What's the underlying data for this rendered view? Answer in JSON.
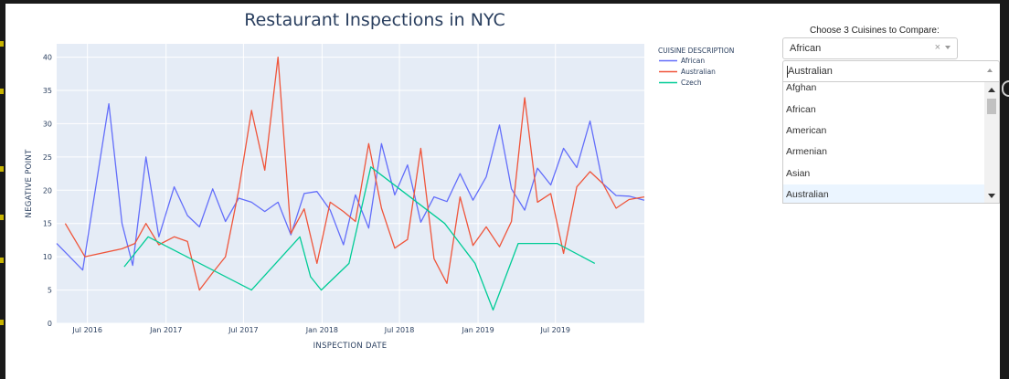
{
  "chart_data": {
    "type": "line",
    "title": "Restaurant Inspections in NYC",
    "xlabel": "INSPECTION DATE",
    "ylabel": "NEGATIVE POINT",
    "ylim": [
      0,
      42
    ],
    "xlim": [
      "2016-04-20",
      "2020-01-25"
    ],
    "y_ticks": [
      0,
      5,
      10,
      15,
      20,
      25,
      30,
      35,
      40
    ],
    "x_ticks": [
      {
        "date": "2016-07-01",
        "label": "Jul 2016"
      },
      {
        "date": "2017-01-01",
        "label": "Jan 2017"
      },
      {
        "date": "2017-07-01",
        "label": "Jul 2017"
      },
      {
        "date": "2018-01-01",
        "label": "Jan 2018"
      },
      {
        "date": "2018-07-01",
        "label": "Jul 2018"
      },
      {
        "date": "2019-01-01",
        "label": "Jan 2019"
      },
      {
        "date": "2019-07-01",
        "label": "Jul 2019"
      }
    ],
    "grid": true,
    "legend_title": "CUISINE DESCRIPTION",
    "legend_position": "right",
    "series": [
      {
        "name": "African",
        "color": "#636efa",
        "points": [
          [
            "2016-04-20",
            12
          ],
          [
            "2016-06-20",
            8
          ],
          [
            "2016-08-20",
            33
          ],
          [
            "2016-09-20",
            15
          ],
          [
            "2016-10-15",
            8.7
          ],
          [
            "2016-11-15",
            25
          ],
          [
            "2016-12-15",
            13
          ],
          [
            "2017-01-20",
            20.5
          ],
          [
            "2017-02-20",
            16.2
          ],
          [
            "2017-03-20",
            14.5
          ],
          [
            "2017-04-20",
            20.2
          ],
          [
            "2017-05-20",
            15.3
          ],
          [
            "2017-06-20",
            18.8
          ],
          [
            "2017-07-20",
            18.2
          ],
          [
            "2017-08-20",
            16.8
          ],
          [
            "2017-09-20",
            18.2
          ],
          [
            "2017-10-20",
            13.3
          ],
          [
            "2017-11-20",
            19.5
          ],
          [
            "2017-12-20",
            19.8
          ],
          [
            "2018-01-20",
            17
          ],
          [
            "2018-02-20",
            11.8
          ],
          [
            "2018-03-20",
            19.3
          ],
          [
            "2018-04-20",
            14.3
          ],
          [
            "2018-05-20",
            27
          ],
          [
            "2018-06-20",
            19.3
          ],
          [
            "2018-07-20",
            23.8
          ],
          [
            "2018-08-20",
            15.2
          ],
          [
            "2018-09-20",
            19
          ],
          [
            "2018-10-20",
            18.3
          ],
          [
            "2018-11-20",
            22.5
          ],
          [
            "2018-12-20",
            18.5
          ],
          [
            "2019-01-20",
            22
          ],
          [
            "2019-02-20",
            29.8
          ],
          [
            "2019-03-20",
            20.2
          ],
          [
            "2019-04-20",
            17
          ],
          [
            "2019-05-20",
            23.3
          ],
          [
            "2019-06-20",
            20.8
          ],
          [
            "2019-07-20",
            26.3
          ],
          [
            "2019-08-20",
            23.4
          ],
          [
            "2019-09-20",
            30.4
          ],
          [
            "2019-10-20",
            21
          ],
          [
            "2019-11-20",
            19.2
          ],
          [
            "2019-12-20",
            19.1
          ],
          [
            "2020-01-25",
            18.5
          ]
        ]
      },
      {
        "name": "Australian",
        "color": "#ef553b",
        "points": [
          [
            "2016-05-10",
            15
          ],
          [
            "2016-06-25",
            10
          ],
          [
            "2016-09-20",
            11.2
          ],
          [
            "2016-10-20",
            12
          ],
          [
            "2016-11-15",
            15
          ],
          [
            "2016-12-15",
            11.8
          ],
          [
            "2017-01-20",
            13
          ],
          [
            "2017-02-20",
            12.3
          ],
          [
            "2017-03-20",
            5
          ],
          [
            "2017-04-20",
            7.6
          ],
          [
            "2017-05-20",
            10
          ],
          [
            "2017-06-20",
            20
          ],
          [
            "2017-07-20",
            32
          ],
          [
            "2017-08-20",
            23
          ],
          [
            "2017-09-20",
            40
          ],
          [
            "2017-10-20",
            13.5
          ],
          [
            "2017-11-20",
            17.2
          ],
          [
            "2017-12-20",
            9
          ],
          [
            "2018-01-20",
            18.2
          ],
          [
            "2018-02-20",
            16.8
          ],
          [
            "2018-03-20",
            15.3
          ],
          [
            "2018-04-20",
            27
          ],
          [
            "2018-05-20",
            17.3
          ],
          [
            "2018-06-20",
            11.3
          ],
          [
            "2018-07-20",
            12.6
          ],
          [
            "2018-08-20",
            26.3
          ],
          [
            "2018-09-20",
            9.7
          ],
          [
            "2018-10-20",
            6
          ],
          [
            "2018-11-20",
            19
          ],
          [
            "2018-12-20",
            11.7
          ],
          [
            "2019-01-20",
            14.5
          ],
          [
            "2019-02-20",
            11.5
          ],
          [
            "2019-03-20",
            15.3
          ],
          [
            "2019-04-20",
            33.9
          ],
          [
            "2019-05-20",
            18.2
          ],
          [
            "2019-06-20",
            19.5
          ],
          [
            "2019-07-20",
            10.5
          ],
          [
            "2019-08-20",
            20.5
          ],
          [
            "2019-09-20",
            22.8
          ],
          [
            "2019-10-20",
            21
          ],
          [
            "2019-11-20",
            17.3
          ],
          [
            "2019-12-20",
            18.6
          ],
          [
            "2020-01-25",
            19
          ]
        ]
      },
      {
        "name": "Czech",
        "color": "#00cc96",
        "points": [
          [
            "2016-09-25",
            8.5
          ],
          [
            "2016-11-20",
            13
          ],
          [
            "2016-12-20",
            12
          ],
          [
            "2017-07-20",
            5
          ],
          [
            "2017-11-10",
            13
          ],
          [
            "2017-12-05",
            7
          ],
          [
            "2017-12-30",
            5
          ],
          [
            "2018-03-05",
            9
          ],
          [
            "2018-04-25",
            23.5
          ],
          [
            "2018-10-15",
            15
          ],
          [
            "2018-12-25",
            9
          ],
          [
            "2019-02-05",
            2
          ],
          [
            "2019-04-05",
            12
          ],
          [
            "2019-07-05",
            12
          ],
          [
            "2019-10-01",
            9
          ]
        ]
      }
    ]
  },
  "control": {
    "label": "Choose 3 Cuisines to Compare:",
    "selected": "African",
    "clear_symbol": "×",
    "search_value": "Australian",
    "options": [
      "Afghan",
      "African",
      "American",
      "Armenian",
      "Asian",
      "Australian"
    ],
    "highlighted": "Australian"
  },
  "colors": {
    "plot_bg": "#e5ecf6",
    "grid": "#ffffff",
    "text": "#2a3f5f",
    "option_highlight": "#ebf5ff"
  }
}
